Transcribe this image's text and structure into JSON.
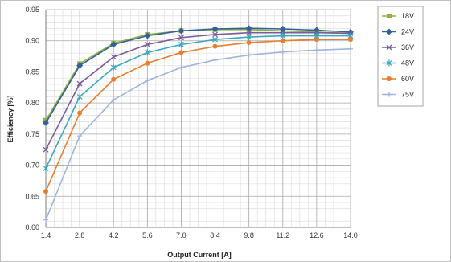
{
  "chart_data": {
    "type": "line",
    "title": "",
    "xlabel": "Output Current [A]",
    "ylabel": "Efficiency [%]",
    "x": [
      1.4,
      2.8,
      4.2,
      5.6,
      7.0,
      8.4,
      9.8,
      11.2,
      12.6,
      14.0
    ],
    "x_tick_labels": [
      "1.4",
      "2.8",
      "4.2",
      "5.6",
      "7.0",
      "8.4",
      "9.8",
      "11.2",
      "12.6",
      "14.0"
    ],
    "xlim": [
      1.4,
      14.0
    ],
    "ylim": [
      0.6,
      0.95
    ],
    "y_ticks": [
      0.6,
      0.65,
      0.7,
      0.75,
      0.8,
      0.85,
      0.9,
      0.95
    ],
    "y_tick_labels": [
      "0.60",
      "0.65",
      "0.70",
      "0.75",
      "0.80",
      "0.85",
      "0.90",
      "0.95"
    ],
    "grid": true,
    "legend_position": "right",
    "series": [
      {
        "name": "18V",
        "color": "#8db33f",
        "marker": "square",
        "values": [
          0.772,
          0.863,
          0.896,
          0.91,
          0.916,
          0.918,
          0.918,
          0.916,
          0.914,
          0.912
        ]
      },
      {
        "name": "24V",
        "color": "#34609e",
        "marker": "diamond",
        "values": [
          0.768,
          0.86,
          0.894,
          0.908,
          0.916,
          0.919,
          0.92,
          0.919,
          0.917,
          0.914
        ]
      },
      {
        "name": "36V",
        "color": "#7a5b9c",
        "marker": "x",
        "values": [
          0.725,
          0.831,
          0.874,
          0.894,
          0.905,
          0.91,
          0.913,
          0.913,
          0.913,
          0.912
        ]
      },
      {
        "name": "48V",
        "color": "#3aa7c0",
        "marker": "star",
        "values": [
          0.695,
          0.81,
          0.857,
          0.881,
          0.894,
          0.902,
          0.906,
          0.908,
          0.908,
          0.908
        ]
      },
      {
        "name": "60V",
        "color": "#e67e2e",
        "marker": "circle",
        "values": [
          0.658,
          0.784,
          0.838,
          0.864,
          0.881,
          0.891,
          0.897,
          0.9,
          0.902,
          0.902
        ]
      },
      {
        "name": "75V",
        "color": "#9fb4dc",
        "marker": "plus",
        "values": [
          0.612,
          0.747,
          0.805,
          0.836,
          0.857,
          0.869,
          0.877,
          0.882,
          0.885,
          0.887
        ]
      }
    ]
  }
}
